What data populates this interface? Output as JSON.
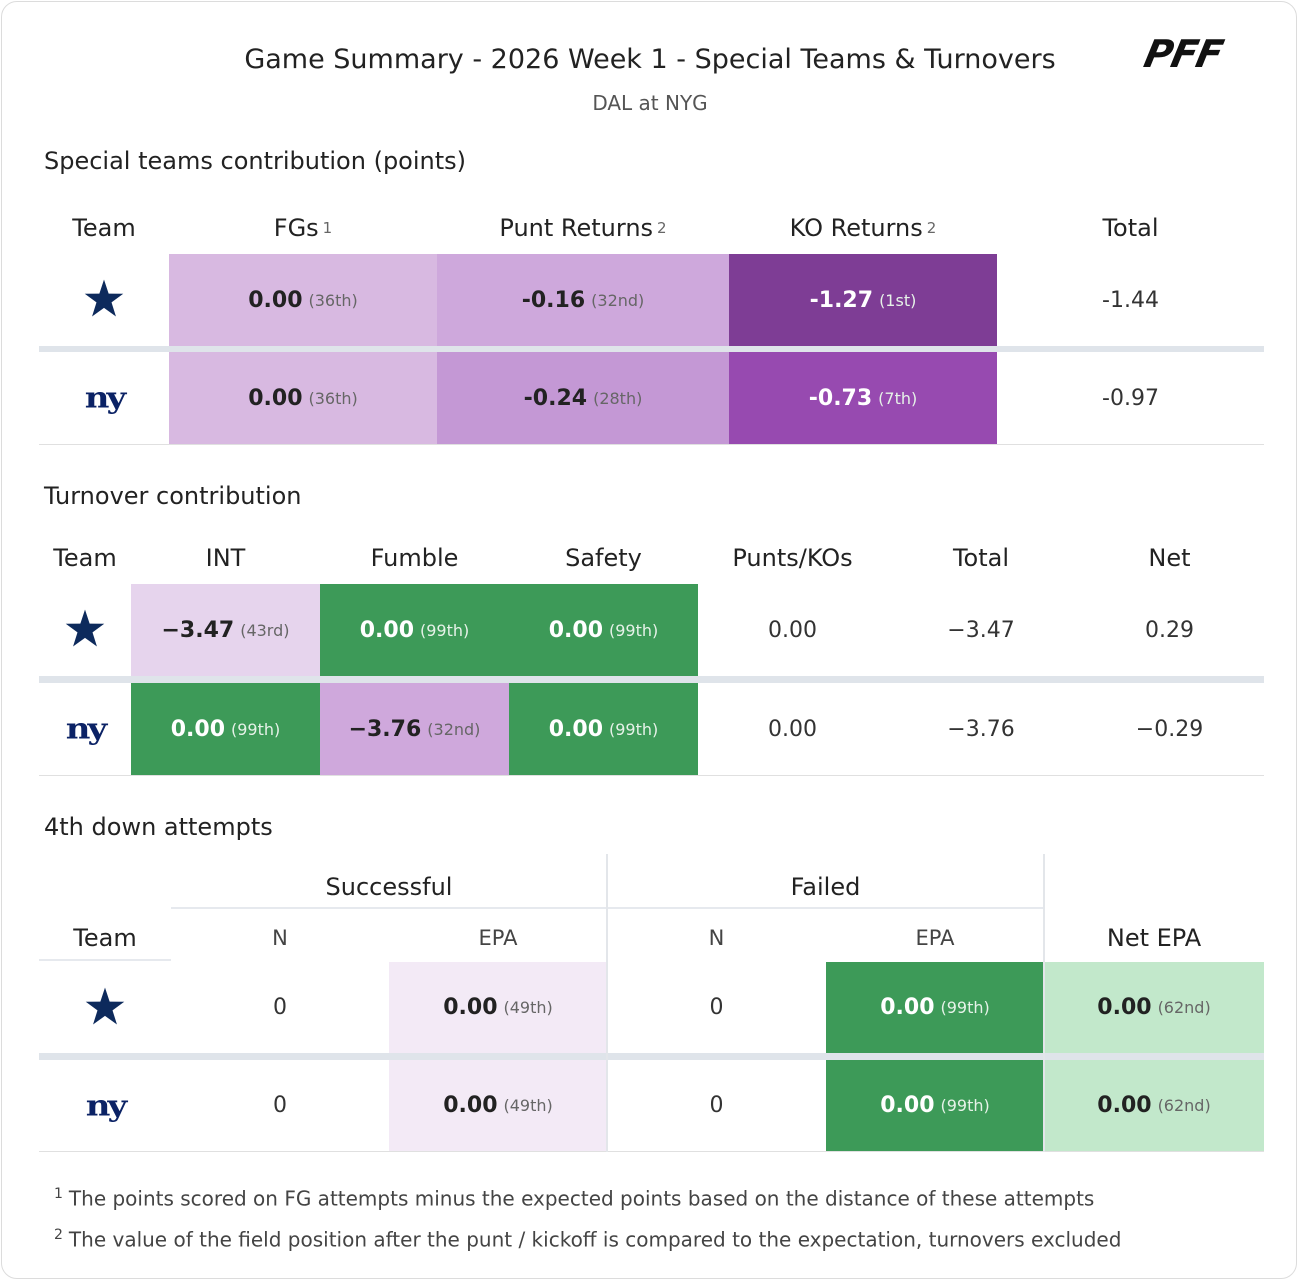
{
  "header": {
    "title": "Game Summary - 2026 Week 1 - Special Teams & Turnovers",
    "subtitle": "DAL at NYG",
    "logo": "PFF"
  },
  "special_teams": {
    "title": "Special teams contribution (points)",
    "columns": [
      {
        "label": "Team"
      },
      {
        "label": "FGs",
        "note": "1"
      },
      {
        "label": "Punt Returns",
        "note": "2"
      },
      {
        "label": "KO Returns",
        "note": "2"
      },
      {
        "label": "Total"
      }
    ],
    "rows": [
      {
        "cells": [
          {
            "value": "0.00",
            "rank": "(36th)",
            "color": "#d8b9e1"
          },
          {
            "value": "-0.16",
            "rank": "(32nd)",
            "color": "#cea8dc"
          },
          {
            "value": "-1.27",
            "rank": "(1st)",
            "color": "#7e3d95"
          },
          {
            "value": "-1.44"
          }
        ]
      },
      {
        "logo": "ny",
        "cells": [
          {
            "value": "0.00",
            "rank": "(36th)",
            "color": "#d8b9e1"
          },
          {
            "value": "-0.24",
            "rank": "(28th)",
            "color": "#c498d5"
          },
          {
            "value": "-0.73",
            "rank": "(7th)",
            "color": "#974ab0"
          },
          {
            "value": "-0.97"
          }
        ]
      }
    ]
  },
  "turnovers": {
    "title": "Turnover contribution",
    "columns": [
      {
        "label": "Team"
      },
      {
        "label": "INT"
      },
      {
        "label": "Fumble"
      },
      {
        "label": "Safety"
      },
      {
        "label": "Punts/KOs"
      },
      {
        "label": "Total"
      },
      {
        "label": "Net"
      }
    ],
    "rows": [
      {
        "cells": [
          {
            "value": "−3.47",
            "rank": "(43rd)",
            "color": "#e6d4ed"
          },
          {
            "value": "0.00",
            "rank": "(99th)",
            "color": "#3d9a58"
          },
          {
            "value": "0.00",
            "rank": "(99th)",
            "color": "#3d9a58"
          },
          {
            "value": "0.00"
          },
          {
            "value": "−3.47"
          },
          {
            "value": "0.29"
          }
        ]
      },
      {
        "logo": "ny",
        "cells": [
          {
            "value": "0.00",
            "rank": "(99th)",
            "color": "#3d9a58"
          },
          {
            "value": "−3.76",
            "rank": "(32nd)",
            "color": "#cfa8dc"
          },
          {
            "value": "0.00",
            "rank": "(99th)",
            "color": "#3d9a58"
          },
          {
            "value": "0.00"
          },
          {
            "value": "−3.76"
          },
          {
            "value": "−0.29"
          }
        ]
      }
    ]
  },
  "fourth_down": {
    "title": "4th down attempts",
    "groups": [
      {
        "label": "Successful"
      },
      {
        "label": "Failed"
      }
    ],
    "columns": [
      {
        "label": "Team"
      },
      {
        "label": "N"
      },
      {
        "label": "EPA"
      },
      {
        "label": "N"
      },
      {
        "label": "EPA"
      },
      {
        "label": "Net EPA"
      }
    ],
    "rows": [
      {
        "cells": [
          {
            "value": "0"
          },
          {
            "value": "0.00",
            "rank": "(49th)",
            "color": "#f3eaf6"
          },
          {
            "value": "0"
          },
          {
            "value": "0.00",
            "rank": "(99th)",
            "color": "#3d9a58"
          },
          {
            "value": "0.00",
            "rank": "(62nd)",
            "color": "#c2e8cb"
          }
        ]
      },
      {
        "logo": "ny",
        "cells": [
          {
            "value": "0"
          },
          {
            "value": "0.00",
            "rank": "(49th)",
            "color": "#f3eaf6"
          },
          {
            "value": "0"
          },
          {
            "value": "0.00",
            "rank": "(99th)",
            "color": "#3d9a58"
          },
          {
            "value": "0.00",
            "rank": "(62nd)",
            "color": "#c2e8cb"
          }
        ]
      }
    ]
  },
  "footnotes": [
    {
      "mark": "1",
      "text": "The points scored on FG attempts minus the expected points based on the distance of these attempts"
    },
    {
      "mark": "2",
      "text": "The value of the field position after the punt / kickoff is compared to the expectation, turnovers excluded"
    }
  ]
}
